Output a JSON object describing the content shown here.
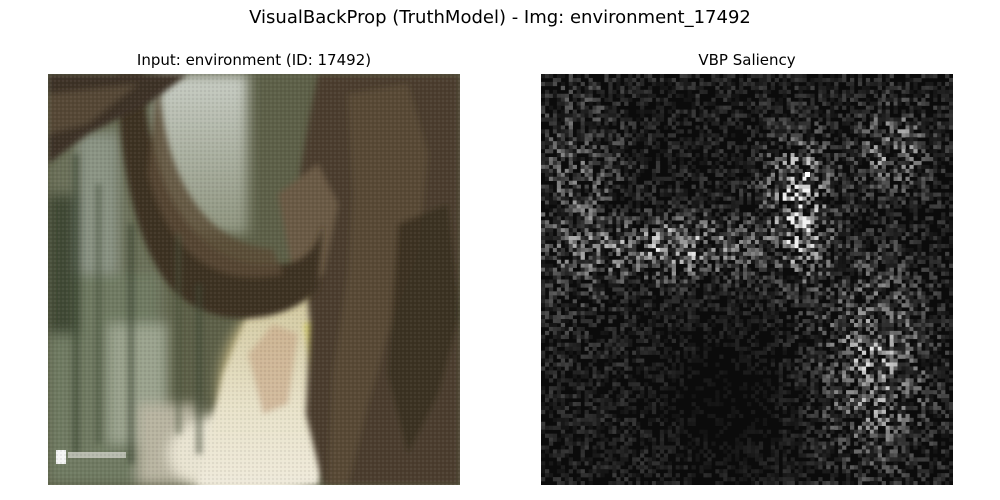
{
  "figure": {
    "title": "VisualBackProp (TruthModel) - Img: environment_17492"
  },
  "panels": {
    "input": {
      "title": "Input: environment (ID: 17492)"
    },
    "saliency": {
      "title": "VBP Saliency"
    }
  },
  "colors": {
    "background": "#ffffff",
    "saliency_dark": "#0b0b0b",
    "saliency_bright": "#ffffff",
    "trunk_brown": "#4a3b2a",
    "foliage_green": "#4d5a3a",
    "light_path": "#e6e0c8"
  }
}
